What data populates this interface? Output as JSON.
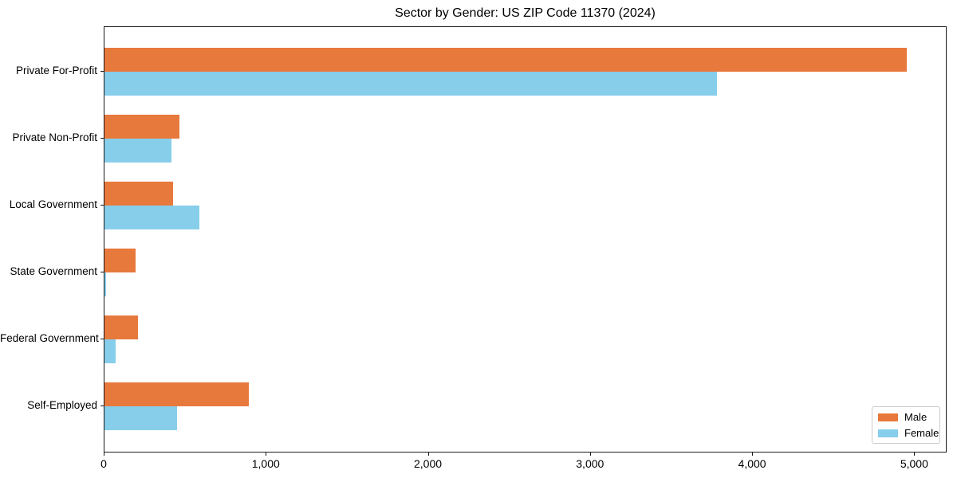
{
  "title": "Sector by Gender: US ZIP Code 11370 (2024)",
  "chart_data": {
    "type": "bar",
    "orientation": "horizontal",
    "title": "Sector by Gender: US ZIP Code 11370 (2024)",
    "categories": [
      "Private For-Profit",
      "Private Non-Profit",
      "Local Government",
      "State Government",
      "Federal Government",
      "Self-Employed"
    ],
    "series": [
      {
        "name": "Male",
        "color": "#E8793C",
        "values": [
          4950,
          460,
          425,
          190,
          205,
          890
        ]
      },
      {
        "name": "Female",
        "color": "#87CEEB",
        "values": [
          3780,
          415,
          585,
          8,
          70,
          450
        ]
      }
    ],
    "xlabel": "",
    "ylabel": "",
    "xlim": [
      0,
      5200
    ],
    "xticks": [
      0,
      1000,
      2000,
      3000,
      4000,
      5000
    ],
    "xtick_labels": [
      "0",
      "1,000",
      "2,000",
      "3,000",
      "4,000",
      "5,000"
    ],
    "grid": false,
    "legend_position": "lower right"
  }
}
